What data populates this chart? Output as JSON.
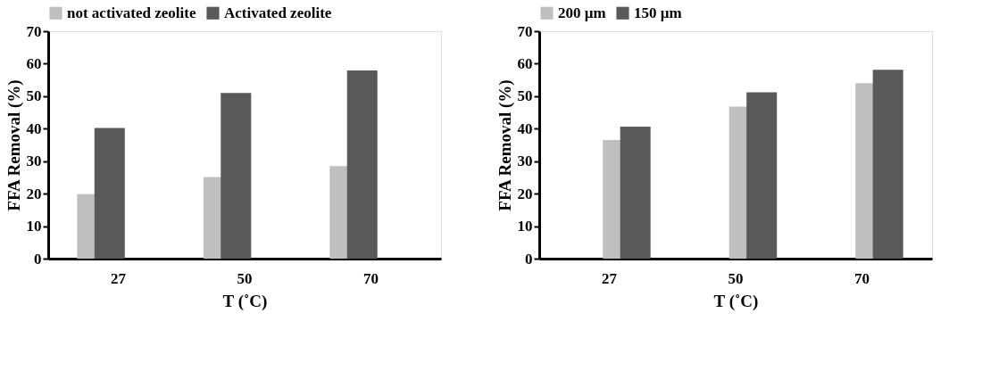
{
  "chart_data": [
    {
      "type": "bar",
      "categories": [
        "27",
        "50",
        "70"
      ],
      "xlabel": "T (˚C)",
      "ylabel": "FFA Removal (%)",
      "ylim": [
        0,
        70
      ],
      "yticks": [
        0,
        10,
        20,
        30,
        40,
        50,
        60,
        70
      ],
      "grid": false,
      "legend": "top",
      "series": [
        {
          "name": "not activated zeolite",
          "color": "#bfbfbf",
          "values": [
            19.8,
            25.1,
            28.5
          ]
        },
        {
          "name": "Activated zeolite",
          "color": "#595959",
          "values": [
            40.2,
            51,
            57.9
          ]
        }
      ]
    },
    {
      "type": "bar",
      "categories": [
        "27",
        "50",
        "70"
      ],
      "xlabel": "T (˚C)",
      "ylabel": "FFA Removal (%)",
      "ylim": [
        0,
        70
      ],
      "yticks": [
        0,
        10,
        20,
        30,
        40,
        50,
        60,
        70
      ],
      "grid": false,
      "legend": "top",
      "series": [
        {
          "name": "200 µm",
          "color": "#bfbfbf",
          "values": [
            36.5,
            46.8,
            54
          ]
        },
        {
          "name": "150 µm",
          "color": "#595959",
          "values": [
            40.6,
            51.2,
            58.1
          ]
        }
      ]
    }
  ]
}
